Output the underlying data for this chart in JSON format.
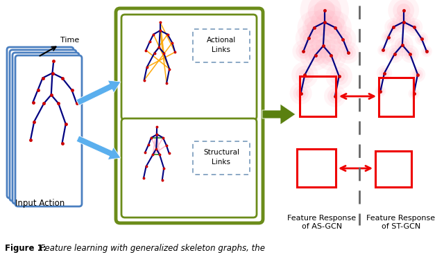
{
  "bg_color": "#ffffff",
  "skeleton_color_blue": "#000080",
  "skeleton_color_red": "#CC0000",
  "arrow_blue": "#5aafee",
  "box_green_outer": "#6b8c1a",
  "box_green_inner": "#6b8c1a",
  "box_blue": "#4a7fc0",
  "actional_color": "#FFA500",
  "structural_green": "#228B22",
  "structural_pink": "#FFB6C1",
  "heatmap_pink": "#FFB6C1",
  "red_box": "#EE0000",
  "dashed_line_color": "#666666",
  "label_color": "#111111",
  "figure_caption_bold": "Figure 1:",
  "figure_caption_italic": " Feature learning with generalized skeleton graphs, the",
  "input_action_label": "Input Action",
  "time_label": "Time",
  "actional_label_line1": "Actional",
  "actional_label_line2": "Links",
  "structural_label_line1": "Structural",
  "structural_label_line2": "Links",
  "asgcn_label_line1": "Feature Response",
  "asgcn_label_line2": "of AS-GCN",
  "stgcn_label_line1": "Feature Response",
  "stgcn_label_line2": "of ST-GCN"
}
